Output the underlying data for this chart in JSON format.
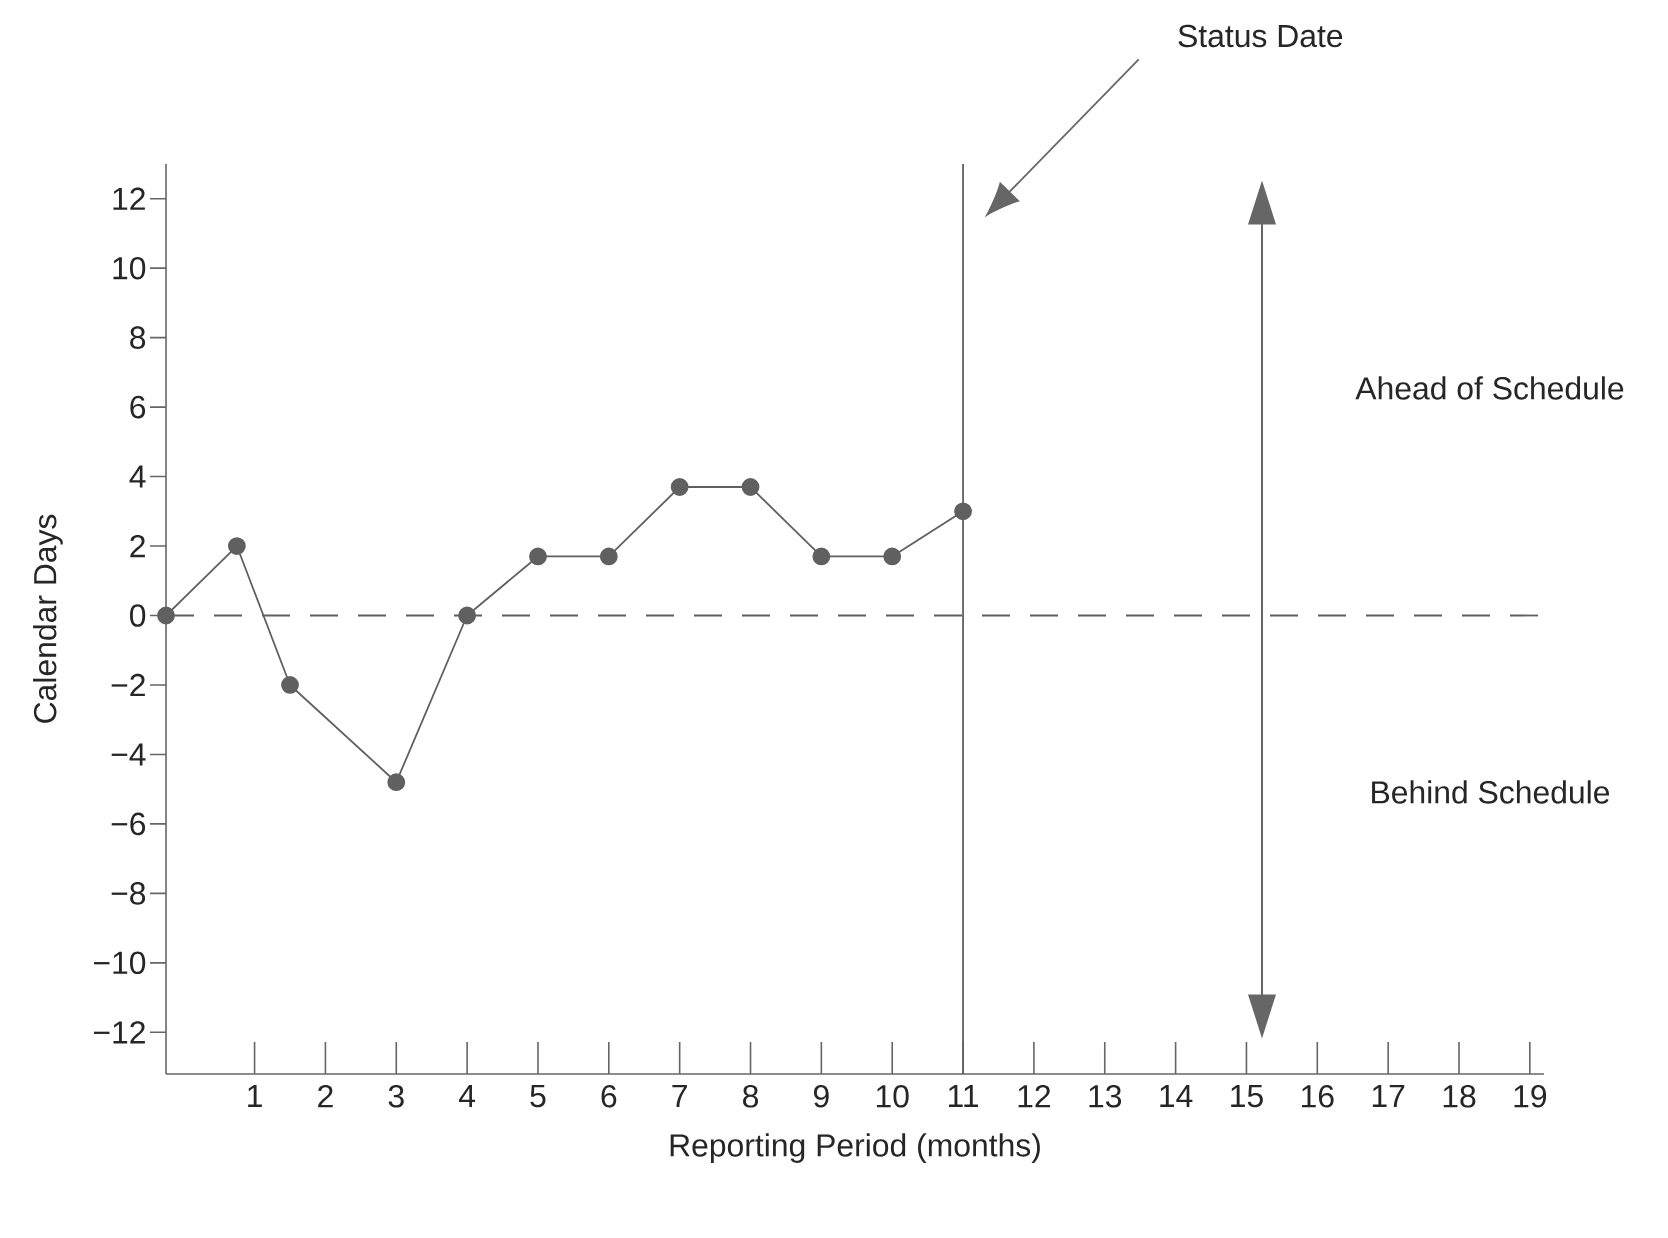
{
  "chart_data": {
    "type": "line",
    "xlabel": "Reporting Period (months)",
    "ylabel": "Calendar Days",
    "x": [
      -0.25,
      0.75,
      1.5,
      3,
      4,
      5,
      6,
      7,
      8,
      9,
      10,
      11
    ],
    "series": [
      {
        "color": "#606060",
        "values": [
          0,
          2,
          -2,
          -4.8,
          0,
          1.7,
          1.7,
          3.7,
          3.7,
          1.7,
          1.7,
          3
        ]
      }
    ],
    "marker": "circle",
    "line_style": "solid",
    "grid": false,
    "xlim": [
      -0.25,
      19.2
    ],
    "ylim": [
      -13.2,
      13
    ],
    "xticks": [
      1,
      2,
      3,
      4,
      5,
      6,
      7,
      8,
      9,
      10,
      11,
      12,
      13,
      14,
      15,
      16,
      17,
      18,
      19
    ],
    "yticks": [
      {
        "value": -12,
        "label": "−12"
      },
      {
        "value": -10,
        "label": "−10"
      },
      {
        "value": -8,
        "label": "−8"
      },
      {
        "value": -6,
        "label": "−6"
      },
      {
        "value": -4,
        "label": "−4"
      },
      {
        "value": -2,
        "label": "−2"
      },
      0,
      2,
      4,
      6,
      8,
      10,
      12
    ],
    "ref_lines": [
      {
        "axis": "x",
        "value": 11,
        "color": "#606060",
        "line_style": "solid"
      },
      {
        "axis": "y",
        "value": 0,
        "color": "#606060",
        "line_style": "dashed"
      }
    ],
    "annotations": [
      "Status Date",
      "Ahead of Schedule",
      "Behind Schedule"
    ]
  }
}
